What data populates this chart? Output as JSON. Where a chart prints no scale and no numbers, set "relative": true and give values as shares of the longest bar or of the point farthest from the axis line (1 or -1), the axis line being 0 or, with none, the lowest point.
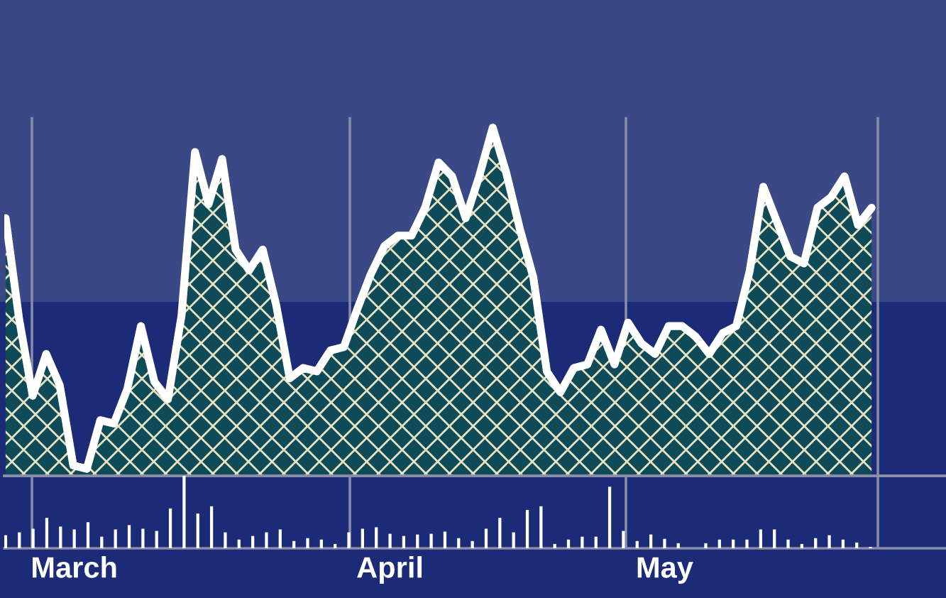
{
  "chart_data": [
    {
      "type": "area",
      "relative": true,
      "color": "#ffffff",
      "tick_labels": false,
      "categories": [
        null,
        null,
        null,
        null,
        null,
        null,
        null,
        null,
        null,
        null,
        null,
        null,
        null,
        null,
        null,
        null,
        null,
        null,
        null,
        null,
        null,
        null,
        null,
        null,
        null,
        null,
        null,
        null,
        null,
        null,
        null,
        null,
        null,
        null,
        null,
        null,
        null,
        null,
        null,
        null,
        null,
        null,
        null,
        null,
        null,
        null,
        null,
        null,
        null,
        null,
        null,
        null,
        null,
        null,
        null,
        null,
        null,
        null,
        null,
        null,
        null,
        null,
        null,
        null,
        null
      ],
      "values": [
        0.74,
        0.45,
        0.23,
        0.35,
        0.26,
        0.03,
        0.02,
        0.16,
        0.15,
        0.25,
        0.43,
        0.27,
        0.22,
        0.46,
        0.93,
        0.78,
        0.91,
        0.65,
        0.59,
        0.65,
        0.49,
        0.28,
        0.31,
        0.3,
        0.36,
        0.37,
        0.48,
        0.58,
        0.66,
        0.69,
        0.69,
        0.77,
        0.9,
        0.86,
        0.74,
        0.86,
        1,
        0.87,
        0.71,
        0.57,
        0.3,
        0.24,
        0.31,
        0.32,
        0.42,
        0.32,
        0.44,
        0.38,
        0.35,
        0.43,
        0.43,
        0.4,
        0.35,
        0.41,
        0.43,
        0.59,
        0.83,
        0.73,
        0.63,
        0.61,
        0.77,
        0.8,
        0.86,
        0.72,
        0.77
      ]
    },
    {
      "type": "bar",
      "relative": true,
      "color": "#ffffff",
      "tick_labels": "x",
      "categories": [
        null,
        null,
        null,
        null,
        null,
        "March",
        null,
        null,
        null,
        null,
        null,
        null,
        null,
        null,
        null,
        null,
        null,
        null,
        null,
        null,
        null,
        null,
        null,
        null,
        null,
        null,
        null,
        null,
        "April",
        null,
        null,
        null,
        null,
        null,
        null,
        null,
        null,
        null,
        null,
        null,
        null,
        null,
        null,
        null,
        null,
        null,
        null,
        null,
        "May",
        null,
        null,
        null,
        null,
        null,
        null,
        null,
        null,
        null,
        null,
        null,
        null,
        null,
        null,
        null
      ],
      "values": [
        0.18,
        0.22,
        0.27,
        0.42,
        0.3,
        0.26,
        0.36,
        0.16,
        0.26,
        0.32,
        0.27,
        0.24,
        0.55,
        1,
        0.48,
        0.58,
        0.22,
        0.12,
        0.17,
        0.22,
        0.26,
        0.1,
        0.14,
        0.12,
        0.06,
        0.22,
        0.27,
        0.29,
        0.2,
        0.17,
        0.19,
        0.2,
        0.23,
        0.14,
        0.1,
        0.27,
        0.42,
        0.22,
        0.53,
        0.58,
        0.06,
        0.12,
        0.16,
        0.16,
        0.85,
        0.24,
        0.1,
        0.19,
        0.13,
        0.07,
        0,
        0.07,
        0.12,
        0.12,
        0.12,
        0.26,
        0.26,
        0.12,
        0.06,
        0.14,
        0.18,
        0.12,
        0.08,
        0.02
      ]
    }
  ]
}
